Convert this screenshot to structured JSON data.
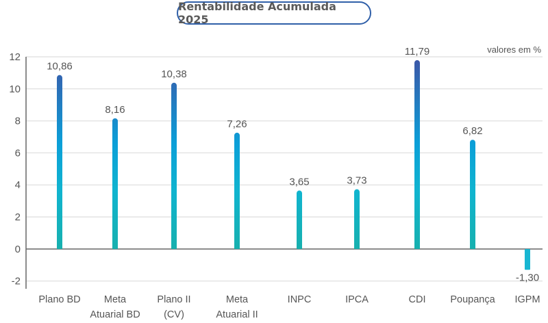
{
  "chart_data": {
    "type": "bar",
    "title": "Rentabilidade Acumulada 2025",
    "unit_note": "valores em %",
    "categories": [
      [
        "Plano BD"
      ],
      [
        "Meta",
        "Atuarial BD"
      ],
      [
        "Plano II",
        "(CV)"
      ],
      [
        "Meta",
        "Atuarial II"
      ],
      [
        "INPC"
      ],
      [
        "IPCA"
      ],
      [
        "CDI"
      ],
      [
        "Poupança"
      ],
      [
        "IGPM"
      ]
    ],
    "values": [
      10.86,
      8.16,
      10.38,
      7.26,
      3.65,
      3.73,
      11.79,
      6.82,
      -1.3
    ],
    "labels": [
      "10,86",
      "8,16",
      "10,38",
      "7,26",
      "3,65",
      "3,73",
      "11,79",
      "6,82",
      "-1,30"
    ],
    "ylim": [
      -2.4,
      12
    ],
    "yticks": [
      -2,
      0,
      2,
      4,
      6,
      8,
      10,
      12
    ],
    "grid": true,
    "colors": {
      "top": "#3d55a6",
      "mid": "#0b9fd8",
      "bottom": "#17b0ae",
      "negative": "#18b6d2",
      "title_border": "#2f5fa8"
    }
  }
}
